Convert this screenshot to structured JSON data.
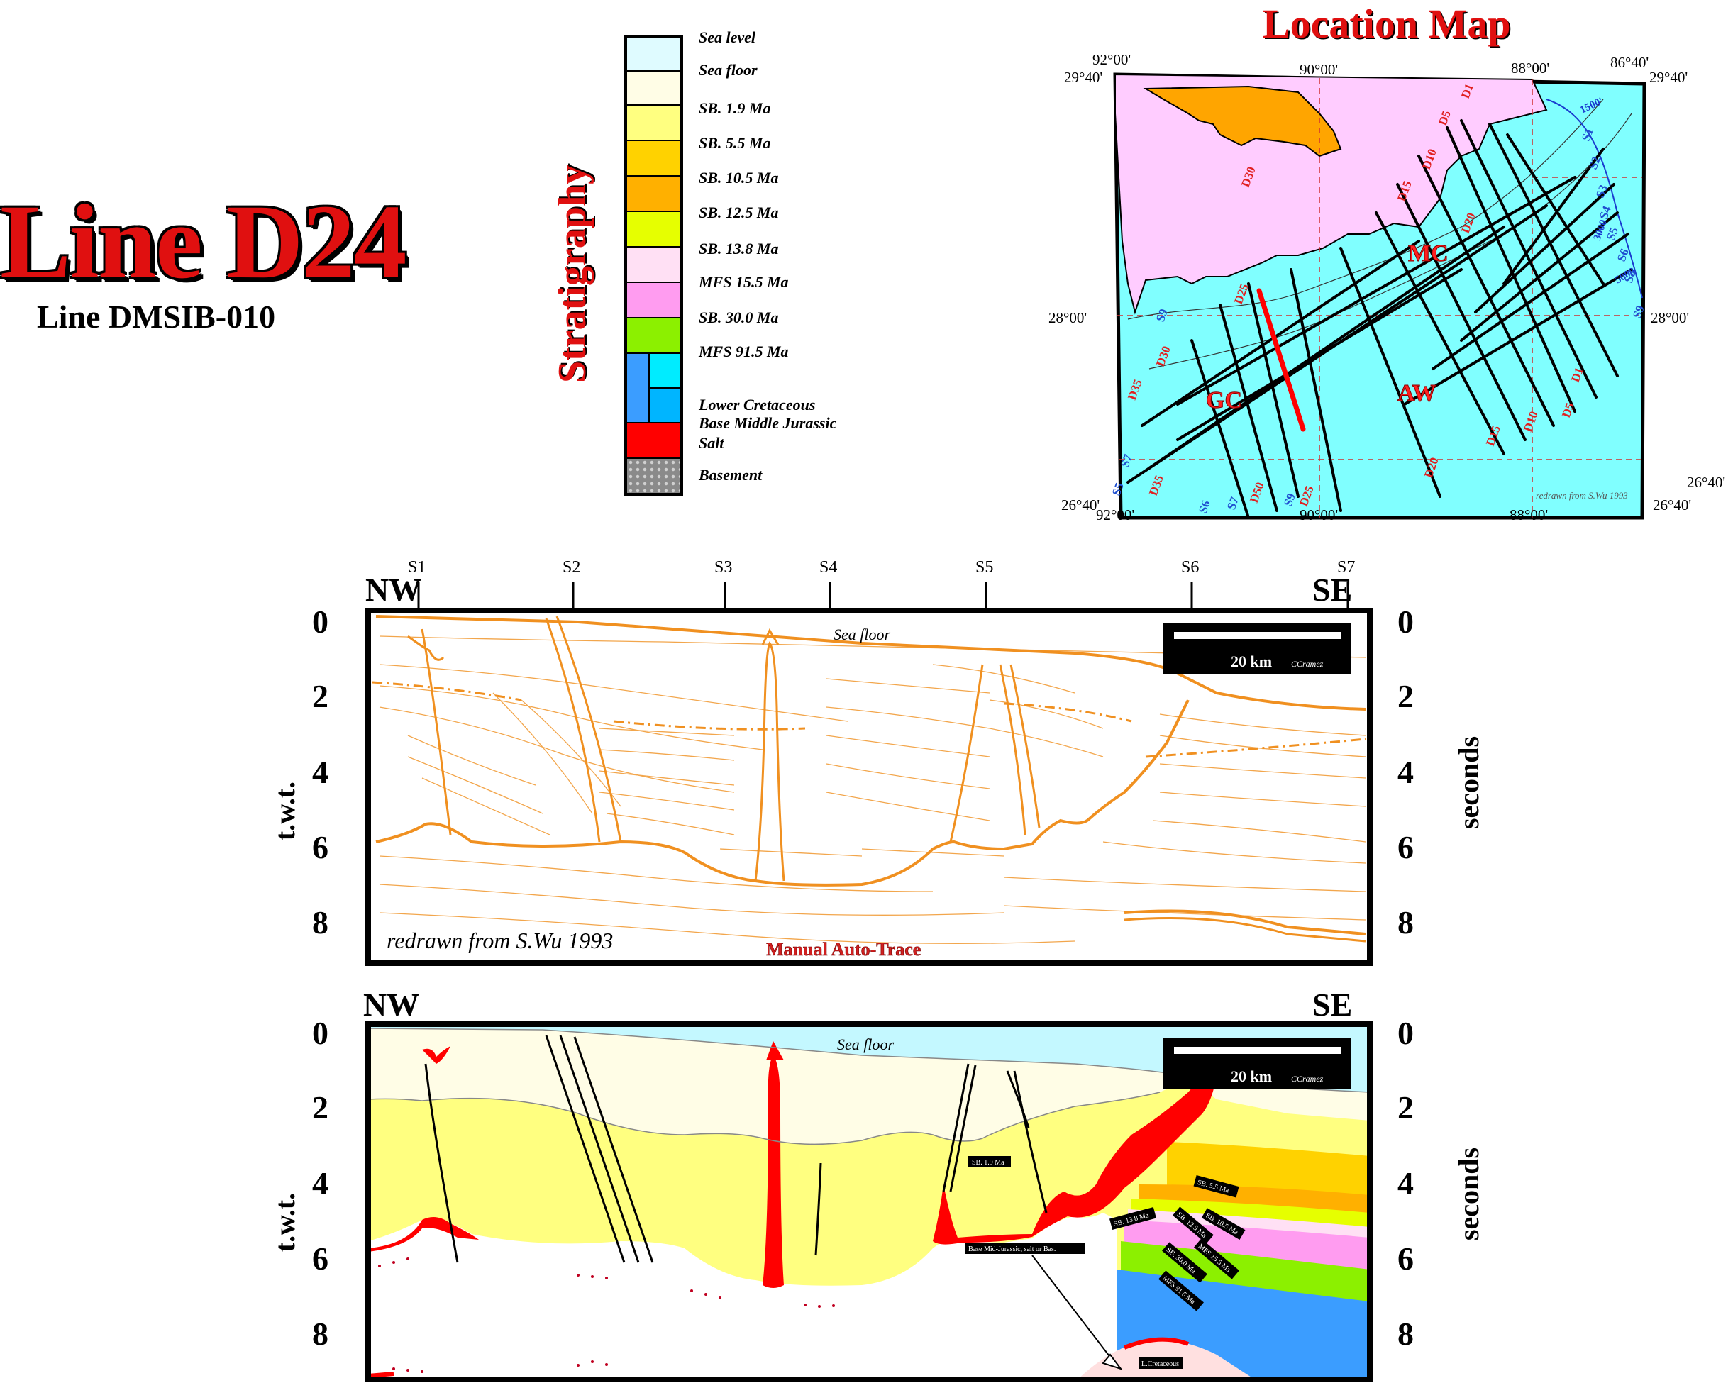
{
  "title": "Line D24",
  "subtitle": "Line DMSIB-010",
  "stratigraphy": {
    "heading": "Stratigraphy",
    "items": [
      {
        "label": "Sea level",
        "color": "#dffbff"
      },
      {
        "label": "Sea floor",
        "color": "#fffde6"
      },
      {
        "label": "SB. 1.9 Ma",
        "color": "#ffff80"
      },
      {
        "label": "SB. 5.5 Ma",
        "color": "#ffd200"
      },
      {
        "label": "SB. 10.5 Ma",
        "color": "#ffb000"
      },
      {
        "label": "SB. 12.5 Ma",
        "color": "#e6ff00"
      },
      {
        "label": "SB. 13.8 Ma",
        "color": "#ffe0f4"
      },
      {
        "label": "MFS 15.5 Ma",
        "color": "#ff9cf0"
      },
      {
        "label": "SB. 30.0 Ma",
        "color": "#8cf000"
      },
      {
        "label": "MFS 91.5 Ma",
        "color": "#00ecff"
      },
      {
        "label": "Lower Cretaceous",
        "color": "#3b9dff"
      },
      {
        "label": "Base Middle Jurassic",
        "color": "#00b5ff"
      },
      {
        "label": "Salt",
        "color": "#ff0000"
      },
      {
        "label": "Basement",
        "color": "#999999"
      }
    ]
  },
  "map": {
    "title": "Location Map",
    "coords": {
      "top_left_lon": "92°00'",
      "top_mid_lon": "90°00'",
      "top_right_lon_a": "88°00'",
      "top_right_lon_b": "86°40'",
      "bottom_left_lon": "92°00'",
      "bottom_mid_lon": "90°00'",
      "bottom_right_lon": "88°00'",
      "lat_top_left": "29°40'",
      "lat_top_right": "29°40'",
      "lat_mid_left": "28°00'",
      "lat_mid_right": "28°00'",
      "lat_bottom_left": "26°40'",
      "lat_bottom_right_a": "26°40'",
      "lat_bottom_right_b": "26°40'"
    },
    "areas": {
      "mc": "MC",
      "gc": "GC",
      "aw": "AW"
    },
    "contours": {
      "c1": "1500'",
      "c2": "3000'",
      "c3": "5000'"
    },
    "credit": "redrawn from S.Wu 1993",
    "dip_lines": [
      "D1",
      "D5",
      "D10",
      "D15",
      "D20",
      "D25",
      "D30",
      "D35",
      "D40",
      "D50",
      "D55"
    ],
    "strike_lines": [
      "S1",
      "S2",
      "S3",
      "S4",
      "S5",
      "S6",
      "S7",
      "S8",
      "S9"
    ],
    "colors": {
      "land": "#ffccff",
      "sea": "#80ffff",
      "lake": "#ffa500",
      "selected": "#ff0000"
    }
  },
  "section": {
    "stations": [
      "S1",
      "S2",
      "S3",
      "S4",
      "S5",
      "S6",
      "S7"
    ],
    "nw": "NW",
    "se": "SE",
    "y_ticks": [
      "0",
      "2",
      "4",
      "6",
      "8"
    ],
    "y_label": "t.w.t.",
    "y_label_right": "seconds",
    "sea_floor": "Sea floor",
    "scale": "20 km",
    "author": "CCramez",
    "credit": "redrawn from S.Wu 1993",
    "trace_caption": "Manual Auto-Trace",
    "colors": {
      "trace": "#f09020",
      "salt": "#ff0000",
      "yellow": "#ffff80",
      "cream": "#fffde6",
      "sea": "#c4f8ff"
    },
    "interp_labels": {
      "sb19": "SB. 1.9 Ma",
      "sb55": "SB. 5.5 Ma",
      "sb105": "SB. 10.5 Ma",
      "sb125": "SB. 12.5 Ma",
      "sb138": "SB. 13.8 Ma",
      "mfs155": "MFS 15.5 Ma",
      "sb30": "SB. 30.0 Ma",
      "mfs915": "MFS 91.5 Ma",
      "base_mid": "Base Mid-Jurassic, salt or Bas.",
      "lcret": "L.Cretaceous"
    }
  }
}
